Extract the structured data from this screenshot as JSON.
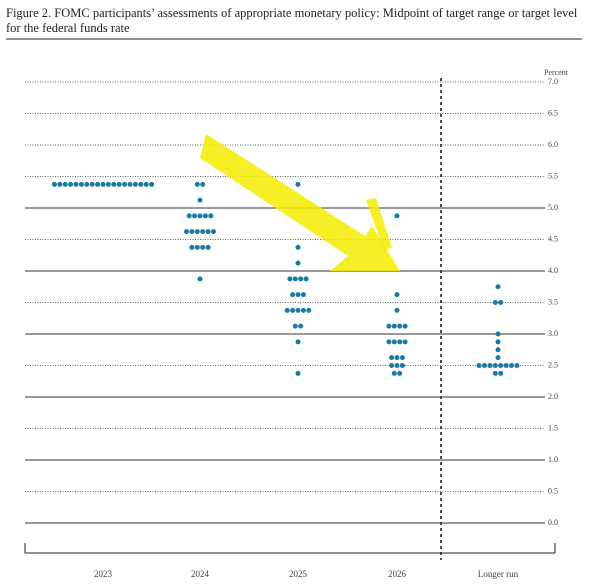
{
  "chart_data": {
    "type": "dot",
    "title": "Figure 2.  FOMC participants’ assessments of appropriate monetary policy: Midpoint of target range or target level for the federal funds rate",
    "y_label": "Percent",
    "color": "#1a7aa3",
    "categories": [
      "2023",
      "2024",
      "2025",
      "2026",
      "Longer run"
    ],
    "dots": [
      [
        5.375,
        5.375,
        5.375,
        5.375,
        5.375,
        5.375,
        5.375,
        5.375,
        5.375,
        5.375,
        5.375,
        5.375,
        5.375,
        5.375,
        5.375,
        5.375,
        5.375,
        5.375,
        5.375
      ],
      [
        5.375,
        5.375,
        5.125,
        4.875,
        4.875,
        4.875,
        4.875,
        4.875,
        4.625,
        4.625,
        4.625,
        4.625,
        4.625,
        4.625,
        4.375,
        4.375,
        4.375,
        4.375,
        3.875
      ],
      [
        5.375,
        4.375,
        4.125,
        3.875,
        3.875,
        3.875,
        3.875,
        3.625,
        3.625,
        3.625,
        3.375,
        3.375,
        3.375,
        3.375,
        3.375,
        3.125,
        3.125,
        2.875,
        2.375
      ],
      [
        4.875,
        3.625,
        3.375,
        3.125,
        3.125,
        3.125,
        3.125,
        2.875,
        2.875,
        2.875,
        2.875,
        2.625,
        2.625,
        2.625,
        2.5,
        2.5,
        2.5,
        2.375,
        2.375
      ],
      [
        3.75,
        3.5,
        3.5,
        3.0,
        2.875,
        2.75,
        2.625,
        2.5,
        2.5,
        2.5,
        2.5,
        2.5,
        2.5,
        2.5,
        2.5,
        2.375,
        2.375
      ]
    ],
    "ylim": [
      0,
      7
    ],
    "yticks": [
      {
        "value": 0,
        "label": "0.0"
      },
      0.5,
      {
        "value": 1,
        "label": "1.0"
      },
      1.5,
      {
        "value": 2,
        "label": "2.0"
      },
      2.5,
      {
        "value": 3,
        "label": "3.0"
      },
      3.5,
      {
        "value": 4,
        "label": "4.0"
      },
      4.5,
      {
        "value": 5,
        "label": "5.0"
      },
      5.5,
      {
        "value": 6,
        "label": "6.0"
      },
      6.5,
      {
        "value": 7,
        "label": "7.0"
      }
    ],
    "grid": true
  }
}
